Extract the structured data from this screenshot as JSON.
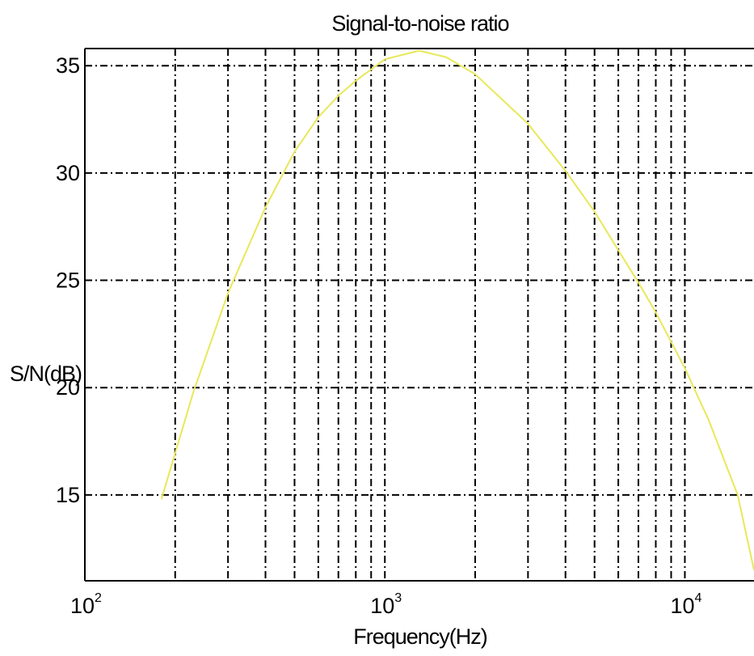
{
  "chart_data": {
    "type": "line",
    "title": "Signal-to-noise ratio",
    "xlabel": "Frequency(Hz)",
    "ylabel": "S/N(dB)",
    "xscale": "log",
    "xlim": [
      100,
      17000
    ],
    "ylim": [
      11,
      35.8
    ],
    "grid": true,
    "x_ticks": [
      {
        "base": "10",
        "exp": "2",
        "value": 100
      },
      {
        "base": "10",
        "exp": "3",
        "value": 1000
      },
      {
        "base": "10",
        "exp": "4",
        "value": 10000
      }
    ],
    "y_ticks": [
      15,
      20,
      25,
      30,
      35
    ],
    "line_color": "#e8e85a",
    "series": [
      {
        "x": [
          180,
          230,
          300,
          400,
          500,
          600,
          700,
          800,
          1000,
          1300,
          1600,
          2000,
          3000,
          4000,
          5000,
          6000,
          7000,
          8000,
          10000,
          12000,
          15000,
          17000
        ],
        "y": [
          14.8,
          19.8,
          24.4,
          28.4,
          31.0,
          32.6,
          33.6,
          34.3,
          35.3,
          35.7,
          35.4,
          34.6,
          32.3,
          30.1,
          28.2,
          26.4,
          24.9,
          23.5,
          20.9,
          18.5,
          15.0,
          11.5
        ]
      }
    ]
  }
}
